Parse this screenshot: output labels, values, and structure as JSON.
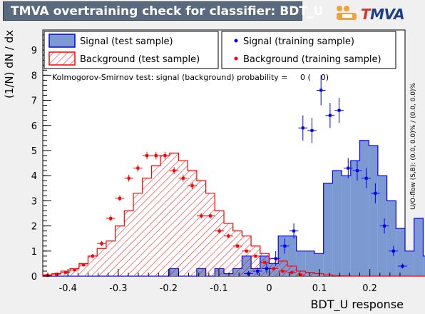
{
  "title": "TMVA overtraining check for classifier: BDT_U",
  "logo": {
    "t": "T",
    "rest": "MVA"
  },
  "colors": {
    "signal_fill": "#7d99d1",
    "signal_line": "#0000ee",
    "background": "#ff0000",
    "frame_bg": "#ffffff",
    "title_bg": "#5a6a7e"
  },
  "chart_data": {
    "type": "bar",
    "xlabel": "BDT_U response",
    "ylabel": "(1/N) dN / dx",
    "xlim": [
      -0.45,
      0.27
    ],
    "ylim": [
      0,
      9.8
    ],
    "x_ticks": [
      "-0.4",
      "-0.3",
      "-0.2",
      "-0.1",
      "0",
      "0.1",
      "0.2"
    ],
    "x_tick_values": [
      -0.4,
      -0.3,
      -0.2,
      -0.1,
      0,
      0.1,
      0.2
    ],
    "y_ticks": [
      "0",
      "1",
      "2",
      "3",
      "4",
      "5",
      "6",
      "7",
      "8",
      "9"
    ],
    "y_tick_values": [
      0,
      1,
      2,
      3,
      4,
      5,
      6,
      7,
      8,
      9
    ],
    "legend": [
      {
        "label": "Signal (test sample)",
        "style": "fill"
      },
      {
        "label": "Background (test sample)",
        "style": "hatch"
      },
      {
        "label": "Signal (training sample)",
        "style": "marker-blue"
      },
      {
        "label": "Background (training sample)",
        "style": "marker-red"
      }
    ],
    "ks_text": "Kolmogorov-Smirnov test: signal (background) probability =     0 (    0)",
    "overflow_text": "U/O-flow (S,B): (0.0, 0.0)% / (0.0, 0.0)%",
    "bin_edges_start": -0.45,
    "bin_width": 0.018,
    "signal_test": [
      0,
      0,
      0,
      0,
      0,
      0,
      0,
      0,
      0,
      0,
      0,
      0,
      0,
      0,
      0.3,
      0,
      0,
      0.3,
      0,
      0.3,
      0.1,
      0.3,
      0.8,
      0.3,
      0.8,
      0.5,
      1.6,
      1.6,
      1.0,
      1.0,
      0.9,
      3.7,
      4.2,
      4.0,
      4.6,
      5.4,
      5.2,
      4.0,
      3.0,
      1.9,
      1.0,
      2.3,
      0.8
    ],
    "background_test": [
      0.05,
      0.1,
      0.2,
      0.3,
      0.5,
      0.8,
      1.1,
      1.4,
      2.0,
      2.6,
      3.3,
      3.9,
      4.4,
      4.8,
      4.9,
      4.6,
      4.2,
      3.8,
      3.3,
      2.6,
      2.1,
      1.8,
      1.6,
      1.2,
      0.9,
      0.7,
      0.6,
      0.4,
      0.2,
      0.15,
      0.1,
      0.05,
      0.02,
      0.01,
      0,
      0,
      0,
      0,
      0,
      0,
      0,
      0,
      0
    ],
    "signal_train": {
      "x": [
        -0.041,
        -0.023,
        -0.005,
        0.013,
        0.031,
        0.049,
        0.067,
        0.085,
        0.103,
        0.121,
        0.139,
        0.157,
        0.175,
        0.193,
        0.211,
        0.229,
        0.247,
        0.265
      ],
      "y": [
        0.1,
        0.2,
        0.3,
        0.7,
        1.2,
        1.8,
        5.9,
        5.8,
        7.4,
        6.4,
        6.6,
        4.3,
        4.2,
        3.9,
        3.3,
        2.0,
        1.0,
        0.4
      ],
      "err": [
        0.1,
        0.15,
        0.2,
        0.3,
        0.3,
        0.3,
        0.5,
        0.5,
        0.6,
        0.5,
        0.5,
        0.4,
        0.4,
        0.4,
        0.4,
        0.3,
        0.2,
        0.1
      ]
    },
    "background_train": {
      "x": [
        -0.441,
        -0.423,
        -0.405,
        -0.387,
        -0.369,
        -0.351,
        -0.333,
        -0.315,
        -0.297,
        -0.279,
        -0.261,
        -0.243,
        -0.225,
        -0.207,
        -0.189,
        -0.171,
        -0.153,
        -0.135,
        -0.117,
        -0.099,
        -0.081,
        -0.063,
        -0.045,
        -0.027,
        -0.009,
        0.009,
        0.027,
        0.045,
        0.063
      ],
      "y": [
        0.03,
        0.08,
        0.15,
        0.25,
        0.45,
        0.8,
        1.3,
        2.3,
        3.1,
        3.9,
        4.3,
        4.8,
        4.8,
        4.8,
        4.2,
        3.9,
        3.6,
        2.4,
        2.4,
        1.8,
        1.6,
        1.2,
        1.0,
        0.8,
        0.55,
        0.3,
        0.2,
        0.15,
        0.05
      ],
      "err": [
        0.02,
        0.03,
        0.04,
        0.05,
        0.06,
        0.08,
        0.1,
        0.12,
        0.12,
        0.14,
        0.14,
        0.15,
        0.15,
        0.15,
        0.14,
        0.14,
        0.13,
        0.11,
        0.11,
        0.1,
        0.09,
        0.08,
        0.07,
        0.06,
        0.05,
        0.04,
        0.03,
        0.03,
        0.02
      ]
    }
  }
}
